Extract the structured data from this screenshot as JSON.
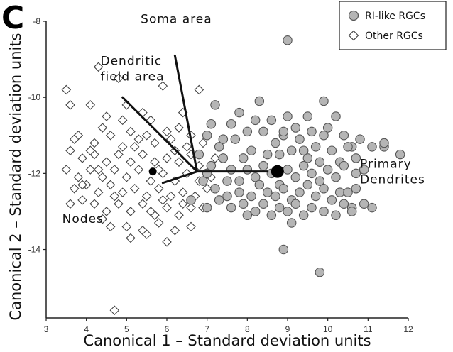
{
  "panel_label": "C",
  "chart_data": {
    "type": "scatter",
    "xlabel": "Canonical 1 – Standard deviation units",
    "ylabel": "Canonical 2 – Standard deviation units",
    "xlim": [
      3,
      12
    ],
    "ylim": [
      -15.8,
      -8
    ],
    "xticks": [
      3,
      4,
      5,
      6,
      7,
      8,
      9,
      10,
      11,
      12
    ],
    "yticks": [
      -8,
      -10,
      -12,
      -14
    ],
    "legend": {
      "position": "top-right"
    },
    "colors": {
      "ri_fill": "#b5b5b5",
      "ri_stroke": "#555555",
      "other_stroke": "#444444",
      "biplot": "#111111"
    },
    "series": [
      {
        "name": "RI-like RGCs",
        "marker": "circle",
        "points": [
          [
            9.0,
            -8.5
          ],
          [
            9.8,
            -14.6
          ],
          [
            8.9,
            -14.0
          ],
          [
            9.1,
            -13.3
          ],
          [
            8.0,
            -13.1
          ],
          [
            7.2,
            -10.2
          ],
          [
            7.6,
            -10.7
          ],
          [
            8.2,
            -10.6
          ],
          [
            8.3,
            -10.1
          ],
          [
            8.4,
            -10.9
          ],
          [
            9.0,
            -10.5
          ],
          [
            9.5,
            -10.5
          ],
          [
            9.9,
            -10.1
          ],
          [
            10.0,
            -10.8
          ],
          [
            10.4,
            -11.0
          ],
          [
            11.1,
            -11.3
          ],
          [
            11.4,
            -11.3
          ],
          [
            11.8,
            -11.5
          ],
          [
            11.4,
            -11.2
          ],
          [
            10.6,
            -11.3
          ],
          [
            7.0,
            -11.0
          ],
          [
            7.3,
            -11.3
          ],
          [
            7.7,
            -11.1
          ],
          [
            7.9,
            -11.6
          ],
          [
            8.1,
            -11.4
          ],
          [
            8.5,
            -11.5
          ],
          [
            8.7,
            -11.2
          ],
          [
            8.9,
            -11.0
          ],
          [
            9.1,
            -11.4
          ],
          [
            9.3,
            -11.1
          ],
          [
            9.5,
            -11.6
          ],
          [
            9.7,
            -11.3
          ],
          [
            9.9,
            -11.0
          ],
          [
            10.1,
            -11.4
          ],
          [
            10.3,
            -11.7
          ],
          [
            10.5,
            -11.3
          ],
          [
            10.7,
            -11.6
          ],
          [
            6.8,
            -11.5
          ],
          [
            7.1,
            -11.8
          ],
          [
            7.4,
            -11.6
          ],
          [
            7.6,
            -11.9
          ],
          [
            7.8,
            -12.2
          ],
          [
            8.0,
            -11.9
          ],
          [
            8.2,
            -12.1
          ],
          [
            8.4,
            -11.8
          ],
          [
            8.6,
            -12.0
          ],
          [
            8.8,
            -12.3
          ],
          [
            9.0,
            -11.9
          ],
          [
            9.2,
            -12.1
          ],
          [
            9.4,
            -11.8
          ],
          [
            9.6,
            -12.0
          ],
          [
            9.8,
            -12.2
          ],
          [
            10.0,
            -11.9
          ],
          [
            10.2,
            -12.1
          ],
          [
            10.4,
            -11.8
          ],
          [
            10.7,
            -12.0
          ],
          [
            10.9,
            -11.9
          ],
          [
            6.9,
            -12.2
          ],
          [
            7.2,
            -12.4
          ],
          [
            7.5,
            -12.2
          ],
          [
            7.8,
            -12.5
          ],
          [
            8.1,
            -12.6
          ],
          [
            8.3,
            -12.3
          ],
          [
            8.5,
            -12.5
          ],
          [
            8.7,
            -12.6
          ],
          [
            8.9,
            -12.4
          ],
          [
            9.1,
            -12.7
          ],
          [
            9.3,
            -12.5
          ],
          [
            9.5,
            -12.3
          ],
          [
            9.7,
            -12.6
          ],
          [
            9.9,
            -12.4
          ],
          [
            10.1,
            -12.7
          ],
          [
            10.3,
            -12.5
          ],
          [
            6.6,
            -12.7
          ],
          [
            7.0,
            -12.9
          ],
          [
            7.3,
            -12.7
          ],
          [
            7.6,
            -12.9
          ],
          [
            7.9,
            -12.8
          ],
          [
            8.2,
            -13.0
          ],
          [
            8.4,
            -12.8
          ],
          [
            8.6,
            -13.1
          ],
          [
            8.8,
            -12.9
          ],
          [
            9.0,
            -13.0
          ],
          [
            9.2,
            -12.8
          ],
          [
            9.4,
            -13.1
          ],
          [
            9.6,
            -12.9
          ],
          [
            9.9,
            -13.0
          ],
          [
            10.2,
            -13.1
          ],
          [
            10.4,
            -12.8
          ],
          [
            10.6,
            -12.9
          ],
          [
            10.5,
            -12.5
          ],
          [
            10.7,
            -12.4
          ],
          [
            10.9,
            -12.8
          ],
          [
            11.1,
            -12.9
          ],
          [
            10.6,
            -13.0
          ],
          [
            7.0,
            -12.0
          ],
          [
            7.4,
            -11.1
          ],
          [
            8.0,
            -10.9
          ],
          [
            8.6,
            -10.6
          ],
          [
            9.2,
            -10.8
          ],
          [
            9.6,
            -10.9
          ],
          [
            10.2,
            -10.5
          ],
          [
            7.1,
            -10.7
          ],
          [
            7.8,
            -10.4
          ],
          [
            8.9,
            -10.9
          ],
          [
            9.4,
            -11.4
          ],
          [
            10.8,
            -11.1
          ],
          [
            7.5,
            -12.6
          ],
          [
            8.8,
            -11.5
          ],
          [
            9.8,
            -11.7
          ]
        ]
      },
      {
        "name": "Other RGCs",
        "marker": "diamond",
        "points": [
          [
            4.3,
            -9.2
          ],
          [
            4.8,
            -9.5
          ],
          [
            4.7,
            -15.6
          ],
          [
            3.6,
            -12.8
          ],
          [
            3.5,
            -9.8
          ],
          [
            3.6,
            -10.2
          ],
          [
            4.1,
            -10.2
          ],
          [
            5.0,
            -10.2
          ],
          [
            5.4,
            -10.4
          ],
          [
            5.9,
            -9.7
          ],
          [
            6.4,
            -10.4
          ],
          [
            6.8,
            -9.8
          ],
          [
            4.4,
            -10.8
          ],
          [
            5.1,
            -10.9
          ],
          [
            5.6,
            -10.6
          ],
          [
            6.0,
            -10.9
          ],
          [
            6.3,
            -10.8
          ],
          [
            3.8,
            -11.0
          ],
          [
            4.2,
            -11.2
          ],
          [
            4.6,
            -11.0
          ],
          [
            4.9,
            -11.3
          ],
          [
            5.3,
            -11.1
          ],
          [
            5.7,
            -11.2
          ],
          [
            6.1,
            -11.1
          ],
          [
            6.5,
            -11.3
          ],
          [
            6.9,
            -11.2
          ],
          [
            3.6,
            -11.4
          ],
          [
            3.9,
            -11.6
          ],
          [
            4.2,
            -11.5
          ],
          [
            4.5,
            -11.7
          ],
          [
            4.8,
            -11.5
          ],
          [
            5.1,
            -11.7
          ],
          [
            5.4,
            -11.5
          ],
          [
            5.7,
            -11.7
          ],
          [
            6.0,
            -11.6
          ],
          [
            6.3,
            -11.7
          ],
          [
            6.6,
            -11.5
          ],
          [
            3.5,
            -11.9
          ],
          [
            3.8,
            -12.1
          ],
          [
            4.1,
            -11.9
          ],
          [
            4.4,
            -12.1
          ],
          [
            4.7,
            -11.9
          ],
          [
            5.0,
            -12.1
          ],
          [
            5.3,
            -11.9
          ],
          [
            5.6,
            -12.2
          ],
          [
            5.9,
            -12.0
          ],
          [
            6.2,
            -12.2
          ],
          [
            6.5,
            -12.0
          ],
          [
            6.8,
            -12.2
          ],
          [
            7.1,
            -12.1
          ],
          [
            3.7,
            -12.4
          ],
          [
            4.0,
            -12.3
          ],
          [
            4.3,
            -12.5
          ],
          [
            4.6,
            -12.3
          ],
          [
            4.9,
            -12.5
          ],
          [
            5.2,
            -12.4
          ],
          [
            5.5,
            -12.6
          ],
          [
            5.8,
            -12.4
          ],
          [
            6.1,
            -12.6
          ],
          [
            6.4,
            -12.5
          ],
          [
            6.7,
            -12.6
          ],
          [
            4.2,
            -12.8
          ],
          [
            4.5,
            -13.0
          ],
          [
            4.8,
            -12.8
          ],
          [
            5.1,
            -13.0
          ],
          [
            5.4,
            -12.8
          ],
          [
            5.7,
            -13.1
          ],
          [
            6.0,
            -12.9
          ],
          [
            6.3,
            -13.1
          ],
          [
            6.6,
            -12.9
          ],
          [
            4.6,
            -13.4
          ],
          [
            5.0,
            -13.4
          ],
          [
            5.4,
            -13.5
          ],
          [
            5.8,
            -13.3
          ],
          [
            6.2,
            -13.5
          ],
          [
            6.6,
            -13.4
          ],
          [
            5.1,
            -13.7
          ],
          [
            5.5,
            -13.6
          ],
          [
            6.0,
            -13.8
          ],
          [
            4.4,
            -13.2
          ],
          [
            3.9,
            -12.7
          ],
          [
            4.1,
            -11.4
          ],
          [
            4.9,
            -10.6
          ],
          [
            5.5,
            -11.0
          ],
          [
            6.2,
            -11.4
          ],
          [
            6.8,
            -11.8
          ],
          [
            7.2,
            -11.6
          ],
          [
            7.0,
            -12.4
          ],
          [
            4.3,
            -11.9
          ],
          [
            5.9,
            -12.7
          ],
          [
            5.2,
            -11.3
          ],
          [
            6.4,
            -12.8
          ],
          [
            3.9,
            -12.3
          ],
          [
            4.7,
            -12.6
          ],
          [
            5.6,
            -13.0
          ],
          [
            6.9,
            -12.9
          ],
          [
            5.8,
            -11.9
          ],
          [
            4.5,
            -10.5
          ],
          [
            6.6,
            -11.0
          ],
          [
            3.7,
            -11.1
          ]
        ]
      }
    ],
    "centroids": [
      {
        "label": "RI-like RGCs",
        "x": 8.75,
        "y": -11.95
      },
      {
        "label": "Other RGCs",
        "x": 5.65,
        "y": -11.95
      }
    ],
    "biplot_origin": [
      6.75,
      -11.95
    ],
    "biplot_vectors": [
      {
        "label": "Soma area",
        "x": 6.2,
        "y": -8.9
      },
      {
        "label": "Dendritic field area",
        "x": 4.9,
        "y": -10.0
      },
      {
        "label": "Nodes",
        "x": 5.9,
        "y": -12.25
      },
      {
        "label": "Primary Dendrites",
        "x": 8.5,
        "y": -11.95
      }
    ],
    "annotations": [
      {
        "id": "soma",
        "lines": [
          "Soma area"
        ],
        "anchor": [
          5.35,
          -8.05
        ]
      },
      {
        "id": "dendritic",
        "lines": [
          "Dendritic",
          "field area"
        ],
        "anchor": [
          4.35,
          -9.15
        ]
      },
      {
        "id": "primary",
        "lines": [
          "Primary",
          "Dendrites"
        ],
        "anchor": [
          10.8,
          -11.85
        ]
      },
      {
        "id": "nodes",
        "lines": [
          "Nodes"
        ],
        "anchor": [
          3.4,
          -13.3
        ]
      }
    ]
  }
}
